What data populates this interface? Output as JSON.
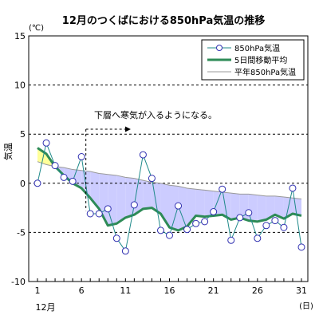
{
  "chart_data": {
    "type": "line",
    "title": "12月のつくばにおける850hPa気温の推移",
    "y_unit": "(℃)",
    "ylabel": "気温",
    "ylim": [
      -10,
      15
    ],
    "yticks": [
      15,
      10,
      5,
      0,
      -5,
      -10
    ],
    "xlim": [
      1,
      31
    ],
    "xticks": [
      1,
      6,
      11,
      16,
      21,
      26,
      31
    ],
    "x_unit": "(日)",
    "x_month_label": "12月",
    "grid": "horizontal-dashed",
    "legend_position": "top-right",
    "x": [
      1,
      2,
      3,
      4,
      5,
      6,
      7,
      8,
      9,
      10,
      11,
      12,
      13,
      14,
      15,
      16,
      17,
      18,
      19,
      20,
      21,
      22,
      23,
      24,
      25,
      26,
      27,
      28,
      29,
      30,
      31
    ],
    "series": [
      {
        "name": "850hPa気温",
        "style": "line-with-circle-markers",
        "color": "#1f8a8a",
        "values": [
          0,
          4.1,
          1.8,
          0.6,
          0.2,
          2.7,
          -3.1,
          -3.1,
          -2.6,
          -5.6,
          -6.9,
          -2.2,
          2.9,
          0.5,
          -4.8,
          -5.3,
          -2.3,
          -4.7,
          -4.1,
          -3.9,
          -2.9,
          -0.6,
          -5.8,
          -3.5,
          -3,
          -5.6,
          -4.3,
          -3.8,
          -4.5,
          -0.5,
          -6.5
        ]
      },
      {
        "name": "5日間移動平均",
        "style": "thick-line",
        "color": "#2e8b57",
        "values": [
          3.6,
          3,
          1.7,
          0.8,
          0,
          -0.5,
          -1.5,
          -2.6,
          -4.3,
          -4.1,
          -3.5,
          -3.2,
          -2.6,
          -2.5,
          -3.1,
          -4.5,
          -4.8,
          -4.4,
          -3.3,
          -3.4,
          -3.3,
          -3.2,
          -3.7,
          -3.5,
          -3.8,
          -3.9,
          -3.7,
          -3.2,
          -3.6,
          -3.1,
          -3.3
        ]
      },
      {
        "name": "平年850hPa気温",
        "style": "thin-line",
        "color": "#999999",
        "values": [
          2.2,
          1.9,
          1.7,
          1.6,
          1.4,
          1.3,
          1.2,
          1,
          0.9,
          0.8,
          0.6,
          0.5,
          0.3,
          0.1,
          0,
          -0.2,
          -0.3,
          -0.5,
          -0.6,
          -0.7,
          -0.8,
          -0.9,
          -1,
          -1.1,
          -1.1,
          -1.2,
          -1.3,
          -1.3,
          -1.4,
          -1.5,
          -1.6
        ]
      }
    ],
    "fill_colors": {
      "above_normal": "#ffff99",
      "below_normal": "#ccccff"
    },
    "annotation": {
      "text": "下層へ寒気が入るようになる。",
      "from_x": 7,
      "to_x": 12,
      "y": 5.5
    }
  }
}
